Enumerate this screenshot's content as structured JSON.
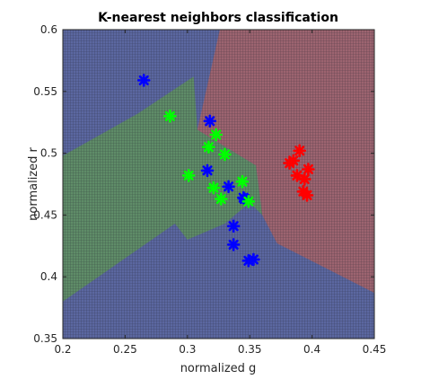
{
  "chart_data": {
    "type": "scatter",
    "title": "K-nearest neighbors classification",
    "xlabel": "normalized g",
    "ylabel": "normalized r",
    "xlim": [
      0.2,
      0.45
    ],
    "ylim": [
      0.35,
      0.6
    ],
    "xticks": [
      "0.2",
      "0.25",
      "0.3",
      "0.35",
      "0.4",
      "0.45"
    ],
    "yticks": [
      "0.35",
      "0.4",
      "0.45",
      "0.5",
      "0.55",
      "0.6"
    ],
    "grid": "dense mesh over decision regions",
    "regions": [
      {
        "class": "blue",
        "color": "#5b67a0",
        "polygon": [
          [
            0.2,
            0.35
          ],
          [
            0.45,
            0.35
          ],
          [
            0.45,
            0.6
          ],
          [
            0.2,
            0.6
          ]
        ]
      },
      {
        "class": "red",
        "color": "#9c6470",
        "polygon": [
          [
            0.326,
            0.6
          ],
          [
            0.45,
            0.6
          ],
          [
            0.45,
            0.387
          ],
          [
            0.372,
            0.427
          ],
          [
            0.36,
            0.45
          ],
          [
            0.355,
            0.49
          ],
          [
            0.308,
            0.519
          ]
        ]
      },
      {
        "class": "green",
        "color": "#5f8c68",
        "polygon": [
          [
            0.2,
            0.38
          ],
          [
            0.2,
            0.498
          ],
          [
            0.26,
            0.532
          ],
          [
            0.305,
            0.562
          ],
          [
            0.308,
            0.519
          ],
          [
            0.355,
            0.49
          ],
          [
            0.36,
            0.45
          ],
          [
            0.35,
            0.46
          ],
          [
            0.33,
            0.443
          ],
          [
            0.3,
            0.43
          ],
          [
            0.29,
            0.443
          ]
        ]
      }
    ],
    "series": [
      {
        "color": "#0000ff",
        "x": [
          0.265,
          0.318,
          0.316,
          0.333,
          0.345,
          0.346,
          0.337,
          0.337,
          0.349,
          0.353
        ],
        "y": [
          0.559,
          0.526,
          0.486,
          0.473,
          0.464,
          0.463,
          0.441,
          0.426,
          0.413,
          0.414
        ]
      },
      {
        "color": "#00ff00",
        "x": [
          0.286,
          0.323,
          0.317,
          0.33,
          0.301,
          0.344,
          0.321,
          0.327,
          0.349
        ],
        "y": [
          0.53,
          0.515,
          0.505,
          0.499,
          0.482,
          0.477,
          0.472,
          0.463,
          0.461
        ]
      },
      {
        "color": "#ff0000",
        "x": [
          0.39,
          0.385,
          0.382,
          0.397,
          0.388,
          0.394,
          0.393,
          0.396
        ],
        "y": [
          0.502,
          0.494,
          0.492,
          0.487,
          0.482,
          0.479,
          0.469,
          0.466
        ]
      }
    ]
  }
}
